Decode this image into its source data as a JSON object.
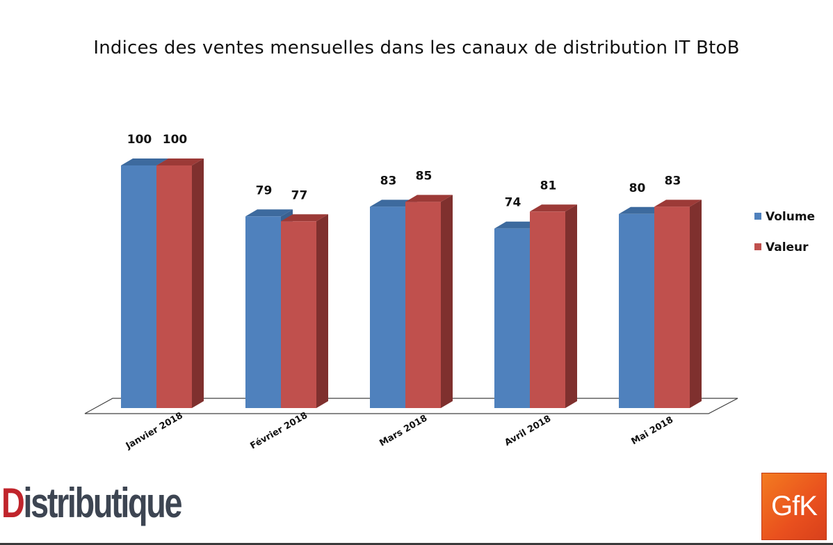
{
  "chart_data": {
    "type": "bar",
    "title": "Indices des ventes mensuelles dans les canaux de distribution IT BtoB",
    "categories": [
      "Janvier 2018",
      "Février 2018",
      "Mars 2018",
      "Avril 2018",
      "Mai 2018"
    ],
    "series": [
      {
        "name": "Volume",
        "values": [
          100,
          79,
          83,
          74,
          80
        ],
        "color": "#4f81bd",
        "side_color": "#3a6190",
        "top_color": "#3d6a9e"
      },
      {
        "name": "Valeur",
        "values": [
          100,
          77,
          85,
          81,
          83
        ],
        "color": "#c0504d",
        "side_color": "#7f302e",
        "top_color": "#9c3a37"
      }
    ],
    "ylim": [
      0,
      100
    ],
    "grid": false,
    "data_labels": true,
    "legend_position": "right",
    "three_d": true
  },
  "logos": {
    "distributique_first": "D",
    "distributique_rest": "istributique",
    "gfk": "GfK"
  }
}
